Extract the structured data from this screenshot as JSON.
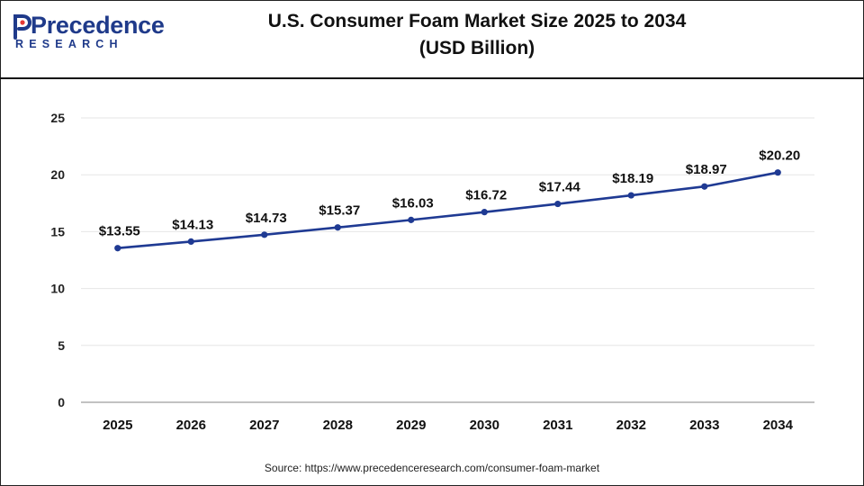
{
  "header": {
    "title_line1": "U.S. Consumer Foam Market Size 2025 to 2034",
    "title_line2": "(USD Billion)",
    "logo_name": "Precedence",
    "logo_sub": "RESEARCH"
  },
  "chart_data": {
    "type": "line",
    "title": "U.S. Consumer Foam Market Size 2025 to 2034 (USD Billion)",
    "categories": [
      "2025",
      "2026",
      "2027",
      "2028",
      "2029",
      "2030",
      "2031",
      "2032",
      "2033",
      "2034"
    ],
    "series": [
      {
        "name": "Market Size",
        "values": [
          13.55,
          14.13,
          14.73,
          15.37,
          16.03,
          16.72,
          17.44,
          18.19,
          18.97,
          20.2
        ],
        "color": "#1f3a93"
      }
    ],
    "data_labels": [
      "$13.55",
      "$14.13",
      "$14.73",
      "$15.37",
      "$16.03",
      "$16.72",
      "$17.44",
      "$18.19",
      "$18.97",
      "$20.20"
    ],
    "yticks": [
      "0",
      "5",
      "10",
      "15",
      "20",
      "25"
    ],
    "ylim": [
      0,
      25
    ],
    "xlabel": "",
    "ylabel": "",
    "grid": true
  },
  "footer": {
    "source": "Source: https://www.precedenceresearch.com/consumer-foam-market"
  }
}
